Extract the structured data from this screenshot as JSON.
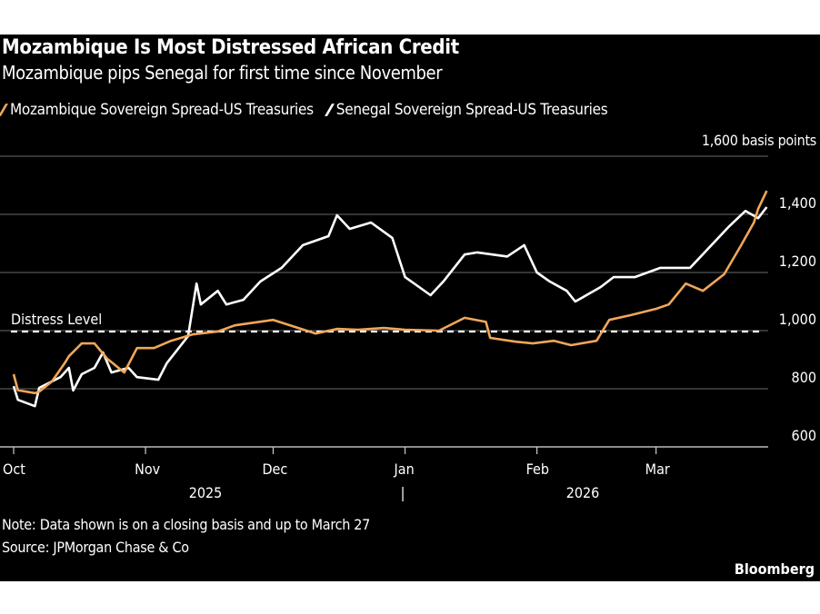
{
  "chart_data": {
    "type": "line",
    "title": "Mozambique Is Most Distressed African Credit",
    "subtitle": "Mozambique pips Senegal for first time since November",
    "ylabel": "1,600 basis points",
    "ylim": [
      600,
      1600
    ],
    "yticks": [
      600,
      800,
      1000,
      1200,
      1400,
      1600
    ],
    "ytick_labels": [
      "600",
      "800",
      "1,000",
      "1,200",
      "1,400",
      ""
    ],
    "xlim": [
      "2025-10-01",
      "2026-03-27"
    ],
    "xticks": [
      {
        "date": "2025-10-01",
        "label": "Oct"
      },
      {
        "date": "2025-11-01",
        "label": "Nov"
      },
      {
        "date": "2025-12-01",
        "label": "Dec"
      },
      {
        "date": "2026-01-01",
        "label": "Jan"
      },
      {
        "date": "2026-02-01",
        "label": "Feb"
      },
      {
        "date": "2026-03-01",
        "label": "Mar"
      }
    ],
    "year_labels": [
      {
        "label": "2025"
      },
      {
        "label": "|"
      },
      {
        "label": "2026"
      }
    ],
    "grid": true,
    "legend_placement": "top-left",
    "reference_line": {
      "label": "Distress Level",
      "value": 1000,
      "style": "dashed",
      "color": "#ffffff"
    },
    "series": [
      {
        "name": "Mozambique Sovereign Spread-US Treasuries",
        "color": "#f2a65a",
        "points": [
          [
            "2025-10-01",
            850
          ],
          [
            "2025-10-02",
            795
          ],
          [
            "2025-10-06",
            785
          ],
          [
            "2025-10-07",
            790
          ],
          [
            "2025-10-10",
            825
          ],
          [
            "2025-10-13",
            888
          ],
          [
            "2025-10-14",
            912
          ],
          [
            "2025-10-17",
            956
          ],
          [
            "2025-10-20",
            956
          ],
          [
            "2025-10-23",
            903
          ],
          [
            "2025-10-27",
            856
          ],
          [
            "2025-10-30",
            940
          ],
          [
            "2025-11-03",
            940
          ],
          [
            "2025-11-07",
            965
          ],
          [
            "2025-11-12",
            987
          ],
          [
            "2025-11-18",
            997
          ],
          [
            "2025-11-22",
            1018
          ],
          [
            "2025-12-01",
            1037
          ],
          [
            "2025-12-05",
            1018
          ],
          [
            "2025-12-11",
            990
          ],
          [
            "2025-12-16",
            1006
          ],
          [
            "2025-12-21",
            1003
          ],
          [
            "2025-12-27",
            1009
          ],
          [
            "2026-01-01",
            1003
          ],
          [
            "2026-01-09",
            1000
          ],
          [
            "2026-01-15",
            1044
          ],
          [
            "2026-01-20",
            1030
          ],
          [
            "2026-01-21",
            975
          ],
          [
            "2026-01-27",
            962
          ],
          [
            "2026-01-31",
            956
          ],
          [
            "2026-02-05",
            965
          ],
          [
            "2026-02-09",
            950
          ],
          [
            "2026-02-15",
            965
          ],
          [
            "2026-02-18",
            1037
          ],
          [
            "2026-02-23",
            1053
          ],
          [
            "2026-03-01",
            1075
          ],
          [
            "2026-03-04",
            1090
          ],
          [
            "2026-03-08",
            1162
          ],
          [
            "2026-03-12",
            1137
          ],
          [
            "2026-03-17",
            1194
          ],
          [
            "2026-03-21",
            1294
          ],
          [
            "2026-03-24",
            1372
          ],
          [
            "2026-03-25",
            1419
          ],
          [
            "2026-03-27",
            1481
          ]
        ]
      },
      {
        "name": "Senegal Sovereign Spread-US Treasuries",
        "color": "#ffffff",
        "points": [
          [
            "2025-10-01",
            809
          ],
          [
            "2025-10-02",
            762
          ],
          [
            "2025-10-06",
            740
          ],
          [
            "2025-10-07",
            803
          ],
          [
            "2025-10-12",
            840
          ],
          [
            "2025-10-14",
            872
          ],
          [
            "2025-10-15",
            794
          ],
          [
            "2025-10-17",
            850
          ],
          [
            "2025-10-20",
            872
          ],
          [
            "2025-10-22",
            925
          ],
          [
            "2025-10-24",
            856
          ],
          [
            "2025-10-28",
            872
          ],
          [
            "2025-10-30",
            840
          ],
          [
            "2025-11-04",
            831
          ],
          [
            "2025-11-06",
            888
          ],
          [
            "2025-11-11",
            981
          ],
          [
            "2025-11-13",
            1162
          ],
          [
            "2025-11-14",
            1090
          ],
          [
            "2025-11-18",
            1137
          ],
          [
            "2025-11-20",
            1090
          ],
          [
            "2025-11-24",
            1106
          ],
          [
            "2025-11-28",
            1169
          ],
          [
            "2025-12-03",
            1216
          ],
          [
            "2025-12-08",
            1294
          ],
          [
            "2025-12-14",
            1325
          ],
          [
            "2025-12-16",
            1397
          ],
          [
            "2025-12-19",
            1350
          ],
          [
            "2025-12-24",
            1372
          ],
          [
            "2025-12-29",
            1319
          ],
          [
            "2026-01-01",
            1184
          ],
          [
            "2026-01-04",
            1153
          ],
          [
            "2026-01-07",
            1122
          ],
          [
            "2026-01-10",
            1169
          ],
          [
            "2026-01-15",
            1262
          ],
          [
            "2026-01-18",
            1269
          ],
          [
            "2026-01-25",
            1255
          ],
          [
            "2026-01-29",
            1294
          ],
          [
            "2026-02-01",
            1200
          ],
          [
            "2026-02-04",
            1169
          ],
          [
            "2026-02-08",
            1137
          ],
          [
            "2026-02-10",
            1100
          ],
          [
            "2026-02-16",
            1150
          ],
          [
            "2026-02-19",
            1184
          ],
          [
            "2026-02-24",
            1184
          ],
          [
            "2026-03-02",
            1216
          ],
          [
            "2026-03-09",
            1216
          ],
          [
            "2026-03-18",
            1356
          ],
          [
            "2026-03-22",
            1412
          ],
          [
            "2026-03-25",
            1387
          ],
          [
            "2026-03-27",
            1425
          ]
        ]
      }
    ]
  },
  "footer": {
    "note": "Note: Data shown is on a closing basis and up to March 27",
    "source": "Source: JPMorgan Chase & Co",
    "brand": "Bloomberg"
  }
}
